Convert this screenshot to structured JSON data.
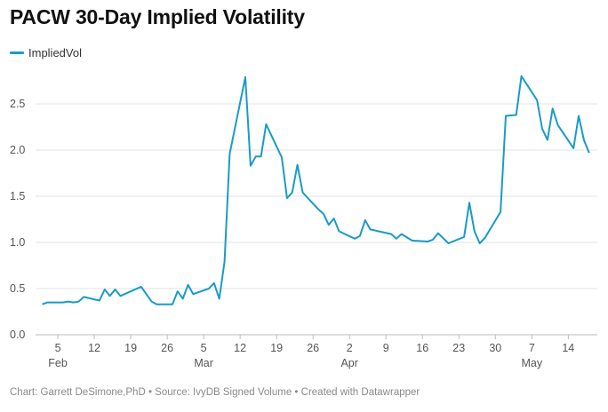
{
  "chart_data": {
    "type": "line",
    "title": "PACW 30-Day Implied Volatility",
    "xlabel": "",
    "ylabel": "",
    "ylim": [
      0,
      2.8
    ],
    "grid": true,
    "legend_placement": "top-left",
    "series_color": "#1a9bc8",
    "yticks": [
      "0.0",
      "0.5",
      "1.0",
      "1.5",
      "2.0",
      "2.5"
    ],
    "ytick_values": [
      0,
      0.5,
      1.0,
      1.5,
      2.0,
      2.5
    ],
    "xticks": [
      {
        "date": "Feb 5",
        "label": "5",
        "month": "Feb"
      },
      {
        "date": "Feb 12",
        "label": "12",
        "month": ""
      },
      {
        "date": "Feb 19",
        "label": "19",
        "month": ""
      },
      {
        "date": "Feb 26",
        "label": "26",
        "month": ""
      },
      {
        "date": "Mar 5",
        "label": "5",
        "month": "Mar"
      },
      {
        "date": "Mar 12",
        "label": "12",
        "month": ""
      },
      {
        "date": "Mar 19",
        "label": "19",
        "month": ""
      },
      {
        "date": "Mar 26",
        "label": "26",
        "month": ""
      },
      {
        "date": "Apr 2",
        "label": "2",
        "month": "Apr"
      },
      {
        "date": "Apr 9",
        "label": "9",
        "month": ""
      },
      {
        "date": "Apr 16",
        "label": "16",
        "month": ""
      },
      {
        "date": "Apr 23",
        "label": "23",
        "month": ""
      },
      {
        "date": "Apr 30",
        "label": "30",
        "month": ""
      },
      {
        "date": "May 7",
        "label": "7",
        "month": "May"
      },
      {
        "date": "May 14",
        "label": "14",
        "month": ""
      }
    ],
    "series": [
      {
        "name": "ImpliedVol",
        "x": [
          "Feb 2",
          "Feb 3",
          "Feb 6",
          "Feb 7",
          "Feb 8",
          "Feb 9",
          "Feb 10",
          "Feb 13",
          "Feb 14",
          "Feb 15",
          "Feb 16",
          "Feb 17",
          "Feb 21",
          "Feb 23",
          "Feb 24",
          "Feb 27",
          "Feb 28",
          "Mar 1",
          "Mar 2",
          "Mar 3",
          "Mar 6",
          "Mar 7",
          "Mar 8",
          "Mar 9",
          "Mar 10",
          "Mar 13",
          "Mar 14",
          "Mar 15",
          "Mar 16",
          "Mar 17",
          "Mar 20",
          "Mar 21",
          "Mar 22",
          "Mar 23",
          "Mar 24",
          "Mar 27",
          "Mar 28",
          "Mar 29",
          "Mar 30",
          "Mar 31",
          "Apr 3",
          "Apr 4",
          "Apr 5",
          "Apr 6",
          "Apr 10",
          "Apr 11",
          "Apr 12",
          "Apr 14",
          "Apr 17",
          "Apr 18",
          "Apr 19",
          "Apr 21",
          "Apr 24",
          "Apr 25",
          "Apr 26",
          "Apr 27",
          "Apr 28",
          "May 1",
          "May 2",
          "May 4",
          "May 5",
          "May 8",
          "May 9",
          "May 10",
          "May 11",
          "May 12",
          "May 15",
          "May 16",
          "May 17",
          "May 18"
        ],
        "values": [
          0.33,
          0.35,
          0.35,
          0.36,
          0.35,
          0.36,
          0.41,
          0.37,
          0.49,
          0.42,
          0.49,
          0.42,
          0.52,
          0.36,
          0.33,
          0.33,
          0.47,
          0.39,
          0.54,
          0.44,
          0.5,
          0.56,
          0.39,
          0.79,
          1.96,
          2.79,
          1.83,
          1.93,
          1.93,
          2.28,
          1.92,
          1.48,
          1.54,
          1.84,
          1.54,
          1.36,
          1.31,
          1.19,
          1.26,
          1.12,
          1.04,
          1.07,
          1.24,
          1.14,
          1.09,
          1.04,
          1.09,
          1.02,
          1.01,
          1.03,
          1.1,
          0.99,
          1.06,
          1.43,
          1.12,
          0.99,
          1.05,
          1.33,
          2.37,
          2.38,
          2.8,
          2.54,
          2.23,
          2.11,
          2.45,
          2.27,
          2.02,
          2.37,
          2.11,
          1.97
        ]
      }
    ]
  },
  "legend": {
    "label": "ImpliedVol"
  },
  "footer": "Chart: Garrett DeSimone,PhD • Source: IvyDB Signed Volume • Created with Datawrapper"
}
